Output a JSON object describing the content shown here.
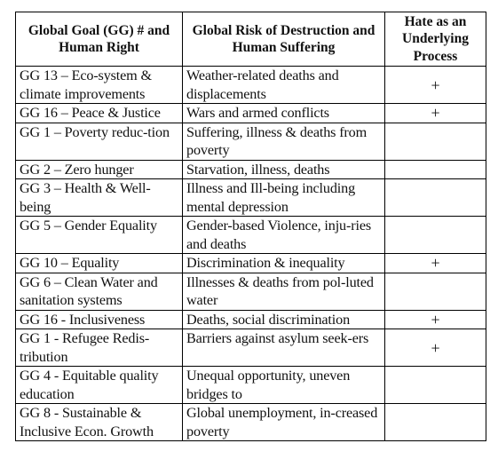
{
  "header": {
    "col1": "Global Goal (GG) # and Human Right",
    "col2": "Global Risk of Destruction and Human Suffering",
    "col3": "Hate as an Underlying Process"
  },
  "rows": [
    {
      "goal": "GG 13 – Eco-system & climate improvements",
      "risk": "Weather-related deaths and displacements",
      "hate": "+"
    },
    {
      "goal": "GG 16 – Peace & Justice",
      "risk": "Wars and armed conflicts",
      "hate": "+"
    },
    {
      "goal": "GG 1 – Poverty reduc-tion",
      "risk": "Suffering, illness & deaths from poverty",
      "hate": ""
    },
    {
      "goal": "GG 2 – Zero hunger",
      "risk": "Starvation, illness, deaths",
      "hate": ""
    },
    {
      "goal": "GG 3 – Health & Well-being",
      "risk": "Illness and Ill-being including mental depression",
      "hate": ""
    },
    {
      "goal": "GG 5 – Gender Equality",
      "risk": "Gender-based Violence, inju-ries and deaths",
      "hate": ""
    },
    {
      "goal": "GG 10 – Equality",
      "risk": "Discrimination & inequality",
      "hate": "+"
    },
    {
      "goal": "GG 6 – Clean Water and sanitation systems",
      "risk": "Illnesses & deaths from pol-luted water",
      "hate": ""
    },
    {
      "goal": "GG 16 - Inclusiveness",
      "risk": "Deaths, social discrimination",
      "hate": "+"
    },
    {
      "goal": "GG 1 - Refugee Redis-tribution",
      "risk": "Barriers against asylum seek-ers",
      "hate": "+"
    },
    {
      "goal": "GG 4 - Equitable quality education",
      "risk": "Unequal opportunity, uneven bridges to",
      "hate": ""
    },
    {
      "goal": "GG 8 - Sustainable & Inclusive Econ. Growth",
      "risk": "Global unemployment, in-creased poverty",
      "hate": ""
    }
  ]
}
